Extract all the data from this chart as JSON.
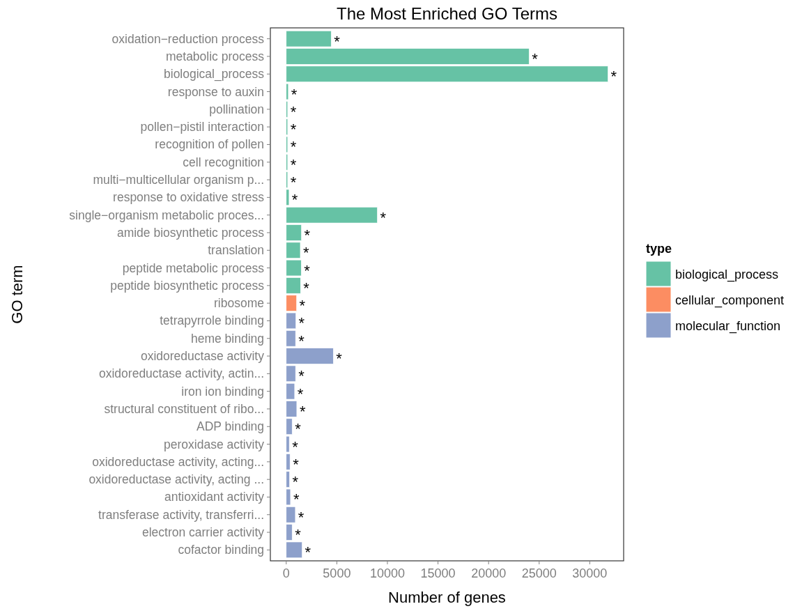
{
  "chart_data": {
    "type": "bar",
    "orientation": "horizontal",
    "title": "The Most Enriched GO Terms",
    "xlabel": "Number of genes",
    "ylabel": "GO term",
    "legend_title": "type",
    "legend": "right",
    "grid": false,
    "categories": [
      "oxidation−reduction process",
      "metabolic process",
      "biological_process",
      "response to auxin",
      "pollination",
      "pollen−pistil interaction",
      "recognition of pollen",
      "cell recognition",
      "multi−multicellular organism p...",
      "response to oxidative stress",
      "single−organism metabolic proces...",
      "amide biosynthetic process",
      "translation",
      "peptide metabolic process",
      "peptide biosynthetic process",
      "ribosome",
      "tetrapyrrole binding",
      "heme binding",
      "oxidoreductase activity",
      "oxidoreductase activity, actin...",
      "iron ion binding",
      "structural constituent of ribo...",
      "ADP binding",
      "peroxidase activity",
      "oxidoreductase activity, acting...",
      "oxidoreductase activity, acting ...",
      "antioxidant activity",
      "transferase activity, transferri...",
      "electron carrier activity",
      "cofactor binding"
    ],
    "series": [
      {
        "name": "biological_process",
        "color": "#66c2a5",
        "values": [
          4440,
          24000,
          31800,
          210,
          140,
          140,
          140,
          140,
          140,
          280,
          9000,
          1500,
          1390,
          1480,
          1410,
          null,
          null,
          null,
          null,
          null,
          null,
          null,
          null,
          null,
          null,
          null,
          null,
          null,
          null,
          null
        ],
        "value_labels": [
          "*",
          "*",
          "*",
          "*",
          "*",
          "*",
          "*",
          "*",
          "*",
          "*",
          "*",
          "*",
          "*",
          "*",
          "*",
          null,
          null,
          null,
          null,
          null,
          null,
          null,
          null,
          null,
          null,
          null,
          null,
          null,
          null,
          null
        ]
      },
      {
        "name": "cellular_component",
        "color": "#fc8d62",
        "values": [
          null,
          null,
          null,
          null,
          null,
          null,
          null,
          null,
          null,
          null,
          null,
          null,
          null,
          null,
          null,
          1020,
          null,
          null,
          null,
          null,
          null,
          null,
          null,
          null,
          null,
          null,
          null,
          null,
          null,
          null
        ],
        "value_labels": [
          null,
          null,
          null,
          null,
          null,
          null,
          null,
          null,
          null,
          null,
          null,
          null,
          null,
          null,
          null,
          "*",
          null,
          null,
          null,
          null,
          null,
          null,
          null,
          null,
          null,
          null,
          null,
          null,
          null,
          null
        ]
      },
      {
        "name": "molecular_function",
        "color": "#8da0cb",
        "values": [
          null,
          null,
          null,
          null,
          null,
          null,
          null,
          null,
          null,
          null,
          null,
          null,
          null,
          null,
          null,
          null,
          950,
          920,
          4650,
          920,
          830,
          1040,
          580,
          300,
          370,
          320,
          420,
          900,
          580,
          1570
        ],
        "value_labels": [
          null,
          null,
          null,
          null,
          null,
          null,
          null,
          null,
          null,
          null,
          null,
          null,
          null,
          null,
          null,
          null,
          "*",
          "*",
          "*",
          "*",
          "*",
          "*",
          "*",
          "*",
          "*",
          "*",
          "*",
          "*",
          "*",
          "*"
        ]
      }
    ],
    "xlim": [
      -1570,
      33350
    ],
    "xticks": [
      0,
      5000,
      10000,
      15000,
      20000,
      25000,
      30000
    ]
  }
}
